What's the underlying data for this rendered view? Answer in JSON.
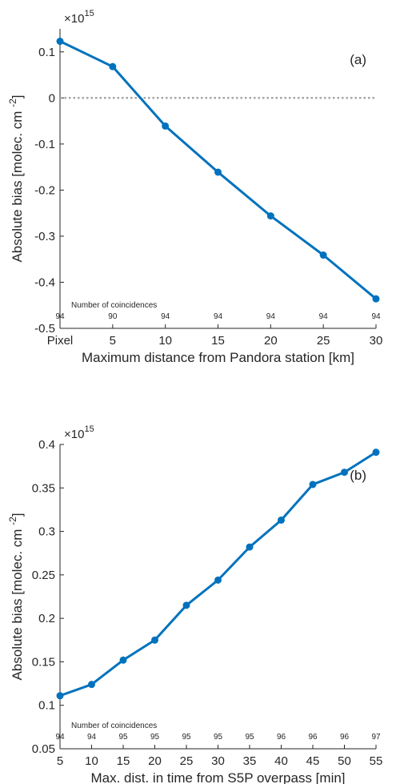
{
  "chart_data": [
    {
      "type": "line",
      "panel_label": "(a)",
      "exponent_base": "×10",
      "exponent_power": "15",
      "xlabel": "Maximum distance from Pandora station [km]",
      "ylabel_main": "Absolute bias [molec. cm",
      "ylabel_sup": "-2",
      "ylabel_end": "]",
      "x": [
        0,
        5,
        10,
        15,
        20,
        25,
        30
      ],
      "x_tick_labels": [
        "Pixel",
        "5",
        "10",
        "15",
        "20",
        "25",
        "30"
      ],
      "values": [
        0.123,
        0.068,
        -0.061,
        -0.161,
        -0.256,
        -0.341,
        -0.436
      ],
      "xlim": [
        0,
        30
      ],
      "ylim": [
        -0.5,
        0.15
      ],
      "y_ticks": [
        0.1,
        0,
        -0.1,
        -0.2,
        -0.3,
        -0.4,
        -0.5
      ],
      "y_tick_labels": [
        "0.1",
        "0",
        "-0.1",
        "-0.2",
        "-0.3",
        "-0.4",
        "-0.5"
      ],
      "zero_line": true,
      "coincidences_title": "Number of coincidences",
      "coincidences": [
        "94",
        "90",
        "94",
        "94",
        "94",
        "94",
        "94"
      ],
      "grid": false,
      "series_color": "#0072bd"
    },
    {
      "type": "line",
      "panel_label": "(b)",
      "exponent_base": "×10",
      "exponent_power": "15",
      "xlabel": "Max. dist. in time from S5P overpass [min]",
      "ylabel_main": "Absolute bias [molec. cm",
      "ylabel_sup": "-2",
      "ylabel_end": "]",
      "x": [
        5,
        10,
        15,
        20,
        25,
        30,
        35,
        40,
        45,
        50,
        55
      ],
      "x_tick_labels": [
        "5",
        "10",
        "15",
        "20",
        "25",
        "30",
        "35",
        "40",
        "45",
        "50",
        "55"
      ],
      "values": [
        0.111,
        0.124,
        0.152,
        0.175,
        0.215,
        0.244,
        0.282,
        0.313,
        0.354,
        0.368,
        0.391
      ],
      "xlim": [
        5,
        55
      ],
      "ylim": [
        0.05,
        0.4
      ],
      "y_ticks": [
        0.4,
        0.35,
        0.3,
        0.25,
        0.2,
        0.15,
        0.1,
        0.05
      ],
      "y_tick_labels": [
        "0.4",
        "0.35",
        "0.3",
        "0.25",
        "0.2",
        "0.15",
        "0.1",
        "0.05"
      ],
      "zero_line": false,
      "coincidences_title": "Number of coincidences",
      "coincidences": [
        "94",
        "94",
        "95",
        "95",
        "95",
        "95",
        "95",
        "96",
        "96",
        "96",
        "97"
      ],
      "grid": false,
      "series_color": "#0072bd"
    }
  ]
}
